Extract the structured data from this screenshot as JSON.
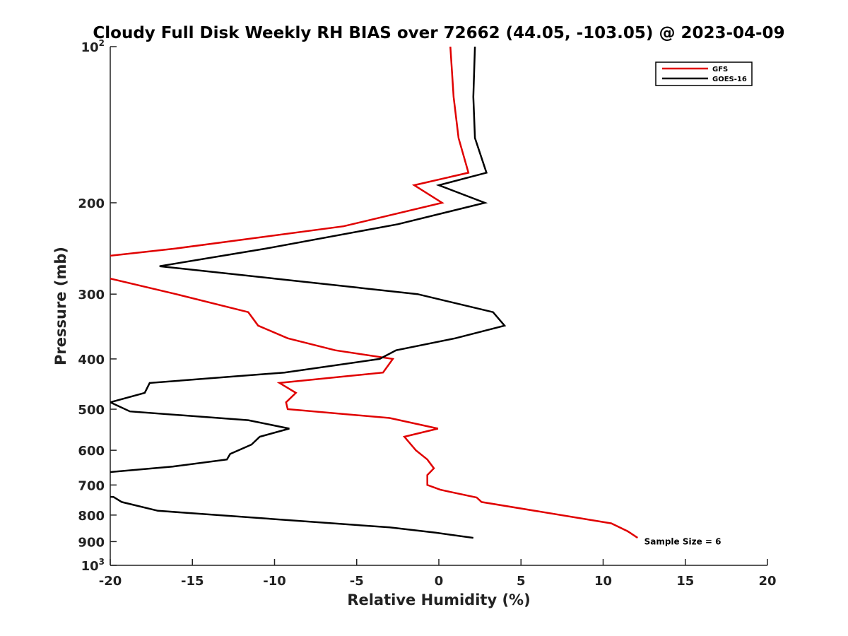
{
  "chart_data": {
    "type": "line",
    "title": "Cloudy Full Disk Weekly RH BIAS over 72662 (44.05, -103.05) @ 2023-04-09",
    "xlabel": "Relative Humidity (%)",
    "ylabel": "Pressure (mb)",
    "xlim": [
      -20,
      20
    ],
    "ylim": [
      1000,
      100
    ],
    "y_scale": "log",
    "y_reversed": true,
    "grid": false,
    "legend_position": "top-right",
    "x_ticks": [
      -20,
      -15,
      -10,
      -5,
      0,
      5,
      10,
      15,
      20
    ],
    "x_tick_labels": [
      "-20",
      "-15",
      "-10",
      "-5",
      "0",
      "5",
      "10",
      "15",
      "20"
    ],
    "y_ticks": [
      {
        "value": 100,
        "base": "10",
        "sup": "2"
      },
      {
        "value": 200,
        "base": "200",
        "sup": ""
      },
      {
        "value": 300,
        "base": "300",
        "sup": ""
      },
      {
        "value": 400,
        "base": "400",
        "sup": ""
      },
      {
        "value": 500,
        "base": "500",
        "sup": ""
      },
      {
        "value": 600,
        "base": "600",
        "sup": ""
      },
      {
        "value": 700,
        "base": "700",
        "sup": ""
      },
      {
        "value": 800,
        "base": "800",
        "sup": ""
      },
      {
        "value": 900,
        "base": "900",
        "sup": ""
      },
      {
        "value": 1000,
        "base": "10",
        "sup": "3"
      }
    ],
    "series": [
      {
        "name": "GFS",
        "color": "#e00000",
        "points": [
          [
            0.7,
            100
          ],
          [
            0.9,
            125
          ],
          [
            1.2,
            150
          ],
          [
            1.8,
            175
          ],
          [
            -1.5,
            185
          ],
          [
            0.2,
            200
          ],
          [
            -5.8,
            222
          ],
          [
            -16,
            245
          ],
          [
            -21,
            255
          ],
          [
            -21,
            276
          ],
          [
            -20,
            280
          ],
          [
            -16,
            300
          ],
          [
            -11.6,
            325
          ],
          [
            -11,
            345
          ],
          [
            -9.2,
            365
          ],
          [
            -6.3,
            385
          ],
          [
            -2.8,
            400
          ],
          [
            -3.4,
            425
          ],
          [
            -9.7,
            445
          ],
          [
            -8.7,
            465
          ],
          [
            -9.3,
            485
          ],
          [
            -9.2,
            500
          ],
          [
            -3,
            520
          ],
          [
            -0.05,
            545
          ],
          [
            -2.1,
            565
          ],
          [
            -1.4,
            600
          ],
          [
            -0.7,
            625
          ],
          [
            -0.3,
            650
          ],
          [
            -0.7,
            670
          ],
          [
            -0.7,
            700
          ],
          [
            0.1,
            715
          ],
          [
            2.3,
            740
          ],
          [
            2.6,
            755
          ],
          [
            10.5,
            830
          ],
          [
            11.5,
            860
          ],
          [
            12.1,
            885
          ]
        ]
      },
      {
        "name": "GOES-16",
        "color": "#000000",
        "points": [
          [
            2.2,
            100
          ],
          [
            2.1,
            125
          ],
          [
            2.2,
            150
          ],
          [
            2.9,
            175
          ],
          [
            0,
            185
          ],
          [
            2.8,
            200
          ],
          [
            -2.5,
            220
          ],
          [
            -10.5,
            245
          ],
          [
            -17,
            265
          ],
          [
            -10,
            280
          ],
          [
            -1.3,
            300
          ],
          [
            3.3,
            325
          ],
          [
            4,
            345
          ],
          [
            1,
            365
          ],
          [
            -2.6,
            385
          ],
          [
            -3.6,
            400
          ],
          [
            -9.4,
            425
          ],
          [
            -17.6,
            445
          ],
          [
            -17.9,
            465
          ],
          [
            -20,
            485
          ],
          [
            -18.8,
            505
          ],
          [
            -11.6,
            525
          ],
          [
            -9.1,
            545
          ],
          [
            -10.9,
            565
          ],
          [
            -11.4,
            585
          ],
          [
            -12.7,
            610
          ],
          [
            -12.9,
            625
          ],
          [
            -16.2,
            645
          ],
          [
            -21,
            665
          ],
          [
            -21,
            735
          ],
          [
            -19.8,
            738
          ],
          [
            -19.3,
            755
          ],
          [
            -17.1,
            785
          ],
          [
            -3,
            845
          ],
          [
            -0.2,
            865
          ],
          [
            2.1,
            885
          ]
        ]
      }
    ],
    "annotations": [
      {
        "text": "Sample Size = 6",
        "x": 12.5,
        "y": 900
      }
    ]
  }
}
